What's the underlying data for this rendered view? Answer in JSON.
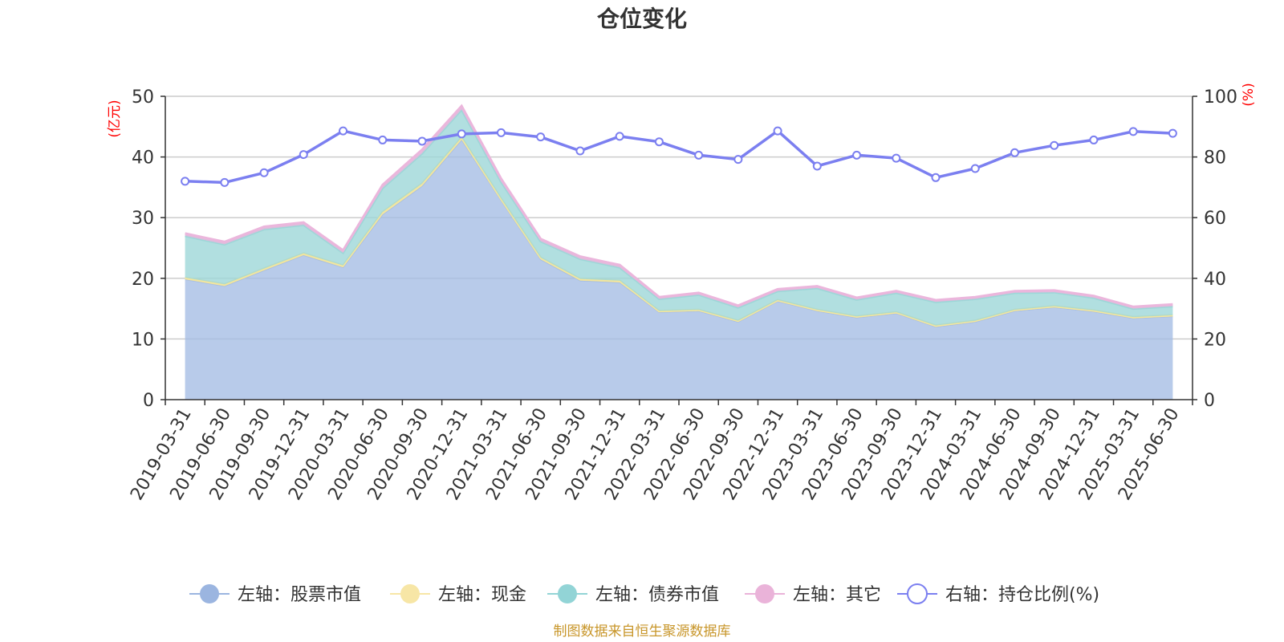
{
  "chart_data": {
    "type": "area",
    "title": "仓位变化",
    "left_unit": "(亿元)",
    "right_unit": "(%)",
    "categories": [
      "2019-03-31",
      "2019-06-30",
      "2019-09-30",
      "2019-12-31",
      "2020-03-31",
      "2020-06-30",
      "2020-09-30",
      "2020-12-31",
      "2021-03-31",
      "2021-06-30",
      "2021-09-30",
      "2021-12-31",
      "2022-03-31",
      "2022-06-30",
      "2022-09-30",
      "2022-12-31",
      "2023-03-31",
      "2023-06-30",
      "2023-09-30",
      "2023-12-31",
      "2024-03-31",
      "2024-06-30",
      "2024-09-30",
      "2024-12-31",
      "2025-03-31",
      "2025-06-30"
    ],
    "ylim_left": [
      0,
      50
    ],
    "ylim_right": [
      0,
      100
    ],
    "left_ticks": [
      0,
      10,
      20,
      30,
      40,
      50
    ],
    "right_ticks": [
      0,
      20,
      40,
      60,
      80,
      100
    ],
    "grid": true,
    "legend_position": "bottom",
    "stacked": true,
    "series": [
      {
        "name": "左轴：股票市值",
        "axis": "left",
        "color": "#a4bde4",
        "legend_color": "#9bb5e0",
        "values": [
          19.8,
          18.7,
          21.3,
          23.8,
          21.8,
          30.5,
          35.2,
          42.8,
          32.8,
          23.1,
          19.6,
          19.3,
          14.4,
          14.6,
          12.8,
          16.2,
          14.6,
          13.5,
          14.2,
          12.0,
          12.8,
          14.6,
          15.2,
          14.5,
          13.4,
          13.7
        ]
      },
      {
        "name": "左轴：现金",
        "axis": "left",
        "color": "#f5e69b",
        "legend_color": "#f7e6a6",
        "values": [
          0.3,
          0.3,
          0.3,
          0.3,
          0.3,
          0.4,
          0.4,
          0.4,
          0.3,
          0.3,
          0.3,
          0.3,
          0.2,
          0.2,
          0.2,
          0.2,
          0.2,
          0.2,
          0.2,
          0.2,
          0.2,
          0.2,
          0.2,
          0.2,
          0.2,
          0.2
        ]
      },
      {
        "name": "左轴：债券市值",
        "axis": "left",
        "color": "#9dd7d8",
        "legend_color": "#92d4d6",
        "values": [
          6.9,
          6.6,
          6.5,
          4.7,
          2.1,
          4.0,
          5.0,
          4.6,
          2.8,
          2.7,
          3.3,
          2.2,
          2.0,
          2.5,
          2.2,
          1.5,
          3.6,
          2.8,
          3.2,
          3.9,
          3.6,
          2.8,
          2.3,
          2.1,
          1.4,
          1.5
        ]
      },
      {
        "name": "左轴：其它",
        "axis": "left",
        "color": "#ebb6dc",
        "legend_color": "#eab3d9",
        "values": [
          0.4,
          0.4,
          0.4,
          0.4,
          0.4,
          0.5,
          0.6,
          0.6,
          0.5,
          0.4,
          0.4,
          0.4,
          0.3,
          0.3,
          0.3,
          0.3,
          0.3,
          0.3,
          0.3,
          0.3,
          0.3,
          0.3,
          0.3,
          0.3,
          0.3,
          0.3
        ]
      },
      {
        "name": "右轴：持仓比例(%)",
        "axis": "right",
        "color": "#7b7ff0",
        "legend_color": "#7b7ff0",
        "values": [
          72.0,
          71.6,
          74.8,
          80.8,
          88.6,
          85.6,
          85.2,
          87.6,
          88.0,
          86.6,
          82.0,
          86.8,
          85.0,
          80.6,
          79.2,
          88.6,
          77.0,
          80.6,
          79.6,
          73.2,
          76.2,
          81.4,
          83.8,
          85.6,
          88.4,
          87.8
        ]
      }
    ]
  },
  "footer": "制图数据来自恒生聚源数据库"
}
